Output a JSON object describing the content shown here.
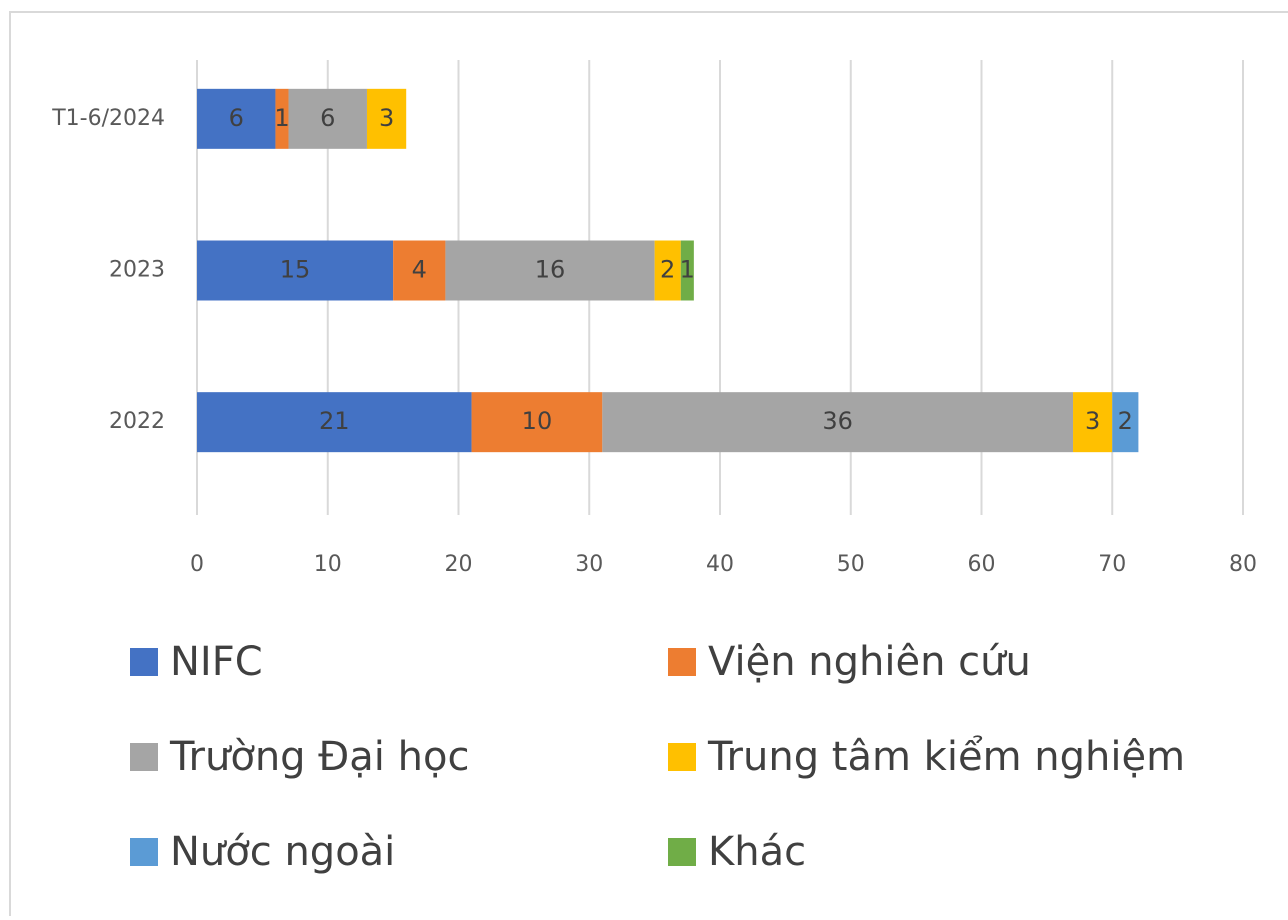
{
  "chart_data": {
    "type": "stacked_bar_horizontal",
    "categories": [
      "T1-6/2024",
      "2023",
      "2022"
    ],
    "series": [
      {
        "name": "NIFC",
        "color": "#4472c4",
        "values": [
          6,
          15,
          21
        ]
      },
      {
        "name": "Viện nghiên cứu",
        "color": "#ed7d31",
        "values": [
          1,
          4,
          10
        ]
      },
      {
        "name": "Trường Đại học",
        "color": "#a5a5a5",
        "values": [
          6,
          16,
          36
        ]
      },
      {
        "name": "Trung tâm kiểm nghiệm",
        "color": "#ffc000",
        "values": [
          3,
          2,
          3
        ]
      },
      {
        "name": "Nước ngoài",
        "color": "#5b9bd5",
        "values": [
          null,
          null,
          2
        ]
      },
      {
        "name": "Khác",
        "color": "#70ad47",
        "values": [
          null,
          1,
          null
        ]
      }
    ],
    "xlim": [
      0,
      80
    ],
    "xticks": [
      0,
      10,
      20,
      30,
      40,
      50,
      60,
      70,
      80
    ],
    "grid": true
  }
}
